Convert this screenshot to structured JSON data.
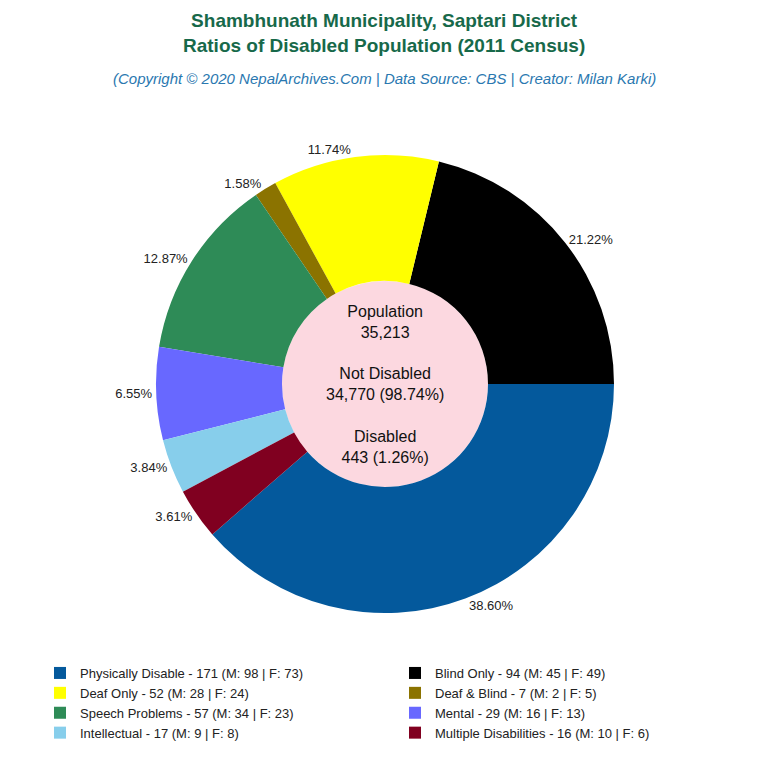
{
  "chart_data": {
    "type": "pie",
    "title": [
      "Shambhunath Municipality, Saptari District",
      "Ratios of Disabled Population (2011 Census)"
    ],
    "subtitle": "(Copyright © 2020 NepalArchives.Com | Data Source: CBS | Creator: Milan Karki)",
    "categories": [
      "Physically Disable - 171 (M: 98 | F: 73)",
      "Blind Only - 94 (M: 45 | F: 49)",
      "Deaf Only - 52 (M: 28 | F: 24)",
      "Deaf & Blind - 7 (M: 2 | F: 5)",
      "Speech Problems - 57 (M: 34 | F: 23)",
      "Mental - 29 (M: 16 | F: 13)",
      "Intellectual - 17 (M: 9 | F: 8)",
      "Multiple Disabilities - 16 (M: 10 | F: 6)"
    ],
    "values": [
      38.6,
      21.22,
      11.74,
      1.58,
      12.87,
      6.55,
      3.84,
      3.61
    ],
    "value_labels": [
      "38.60%",
      "21.22%",
      "11.74%",
      "1.58%",
      "12.87%",
      "6.55%",
      "3.84%",
      "3.61%"
    ],
    "colors": [
      "#04599c",
      "#000000",
      "#ffff00",
      "#8b7300",
      "#2e8b57",
      "#6868ff",
      "#87ceeb",
      "#800020"
    ],
    "center_text": [
      "Population",
      "35,213",
      "Not Disabled",
      "34,770 (98.74%)",
      "Disabled",
      "443 (1.26%)"
    ],
    "data_labels": true,
    "legend": "bottom"
  }
}
